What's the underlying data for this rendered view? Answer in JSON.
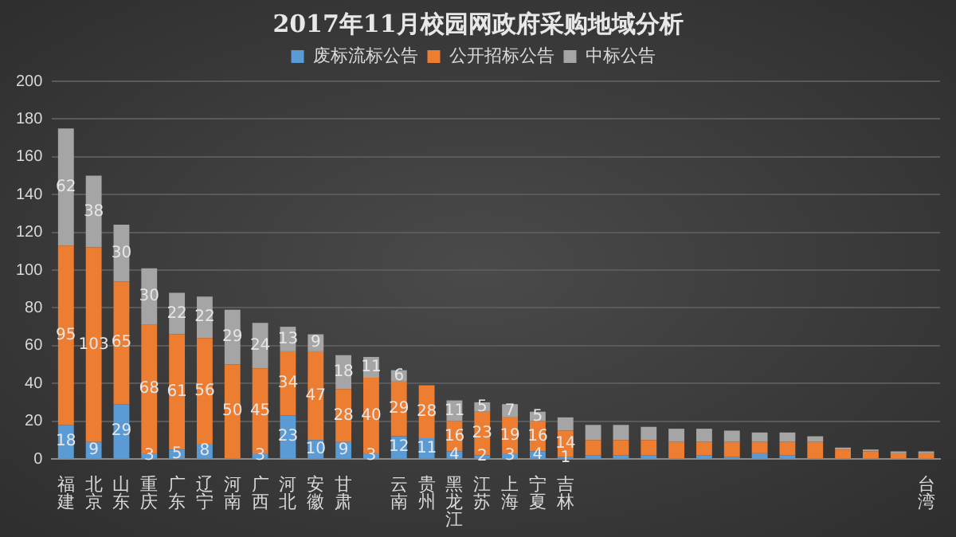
{
  "chart_data": {
    "type": "bar",
    "title": "2017年11月校园网政府采购地域分析",
    "stacked": true,
    "grid": "y",
    "legend": "top",
    "categories": [
      "福建",
      "北京",
      "山东",
      "重庆",
      "广东",
      "辽宁",
      "河南",
      "广西",
      "河北",
      "安徽",
      "甘肃",
      null,
      "云南",
      "贵州",
      "黑龙江",
      "江苏",
      "上海",
      "宁夏",
      "吉林",
      null,
      null,
      null,
      null,
      null,
      null,
      null,
      null,
      null,
      null,
      null,
      null,
      "台湾"
    ],
    "ylim": [
      0,
      200
    ],
    "yticks": [
      0,
      20,
      40,
      60,
      80,
      100,
      120,
      140,
      160,
      180,
      200
    ],
    "series": [
      {
        "name": "废标流标公告",
        "color": "#5b9bd5",
        "values": [
          18,
          9,
          29,
          3,
          5,
          8,
          0,
          3,
          23,
          10,
          9,
          3,
          12,
          11,
          4,
          2,
          3,
          4,
          1,
          2,
          2,
          2,
          0,
          2,
          1,
          3,
          2,
          0,
          0,
          0,
          0,
          0
        ],
        "value_labels": [
          "18",
          "9",
          "29",
          "3",
          "5",
          "8",
          null,
          "3",
          "23",
          "10",
          "9",
          "3",
          "12",
          "11",
          "4",
          "2",
          "3",
          "4",
          "1",
          null,
          null,
          null,
          null,
          null,
          null,
          null,
          null,
          null,
          null,
          null,
          null,
          null
        ]
      },
      {
        "name": "公开招标公告",
        "color": "#ed7d31",
        "values": [
          95,
          103,
          65,
          68,
          61,
          56,
          50,
          45,
          34,
          47,
          28,
          40,
          29,
          28,
          16,
          23,
          19,
          16,
          14,
          8,
          8,
          8,
          9,
          7,
          8,
          6,
          7,
          9,
          5,
          4,
          3,
          3
        ],
        "value_labels": [
          "95",
          "103",
          "65",
          "68",
          "61",
          "56",
          "50",
          "45",
          "34",
          "47",
          "28",
          "40",
          "29",
          "28",
          "16",
          "23",
          "19",
          "16",
          "14",
          null,
          null,
          null,
          null,
          null,
          null,
          null,
          null,
          null,
          null,
          null,
          null,
          null
        ]
      },
      {
        "name": "中标公告",
        "color": "#a5a5a5",
        "values": [
          62,
          38,
          30,
          30,
          22,
          22,
          29,
          24,
          13,
          9,
          18,
          11,
          6,
          0,
          11,
          5,
          7,
          5,
          7,
          8,
          8,
          7,
          7,
          7,
          6,
          5,
          5,
          3,
          1,
          1,
          1,
          1
        ],
        "value_labels": [
          "62",
          "38",
          "30",
          "30",
          "22",
          "22",
          "29",
          "24",
          "13",
          "9",
          "18",
          "11",
          "6",
          null,
          "11",
          "5",
          "7",
          "5",
          null,
          null,
          null,
          null,
          null,
          null,
          null,
          null,
          null,
          null,
          null,
          null,
          null,
          null
        ]
      }
    ]
  }
}
